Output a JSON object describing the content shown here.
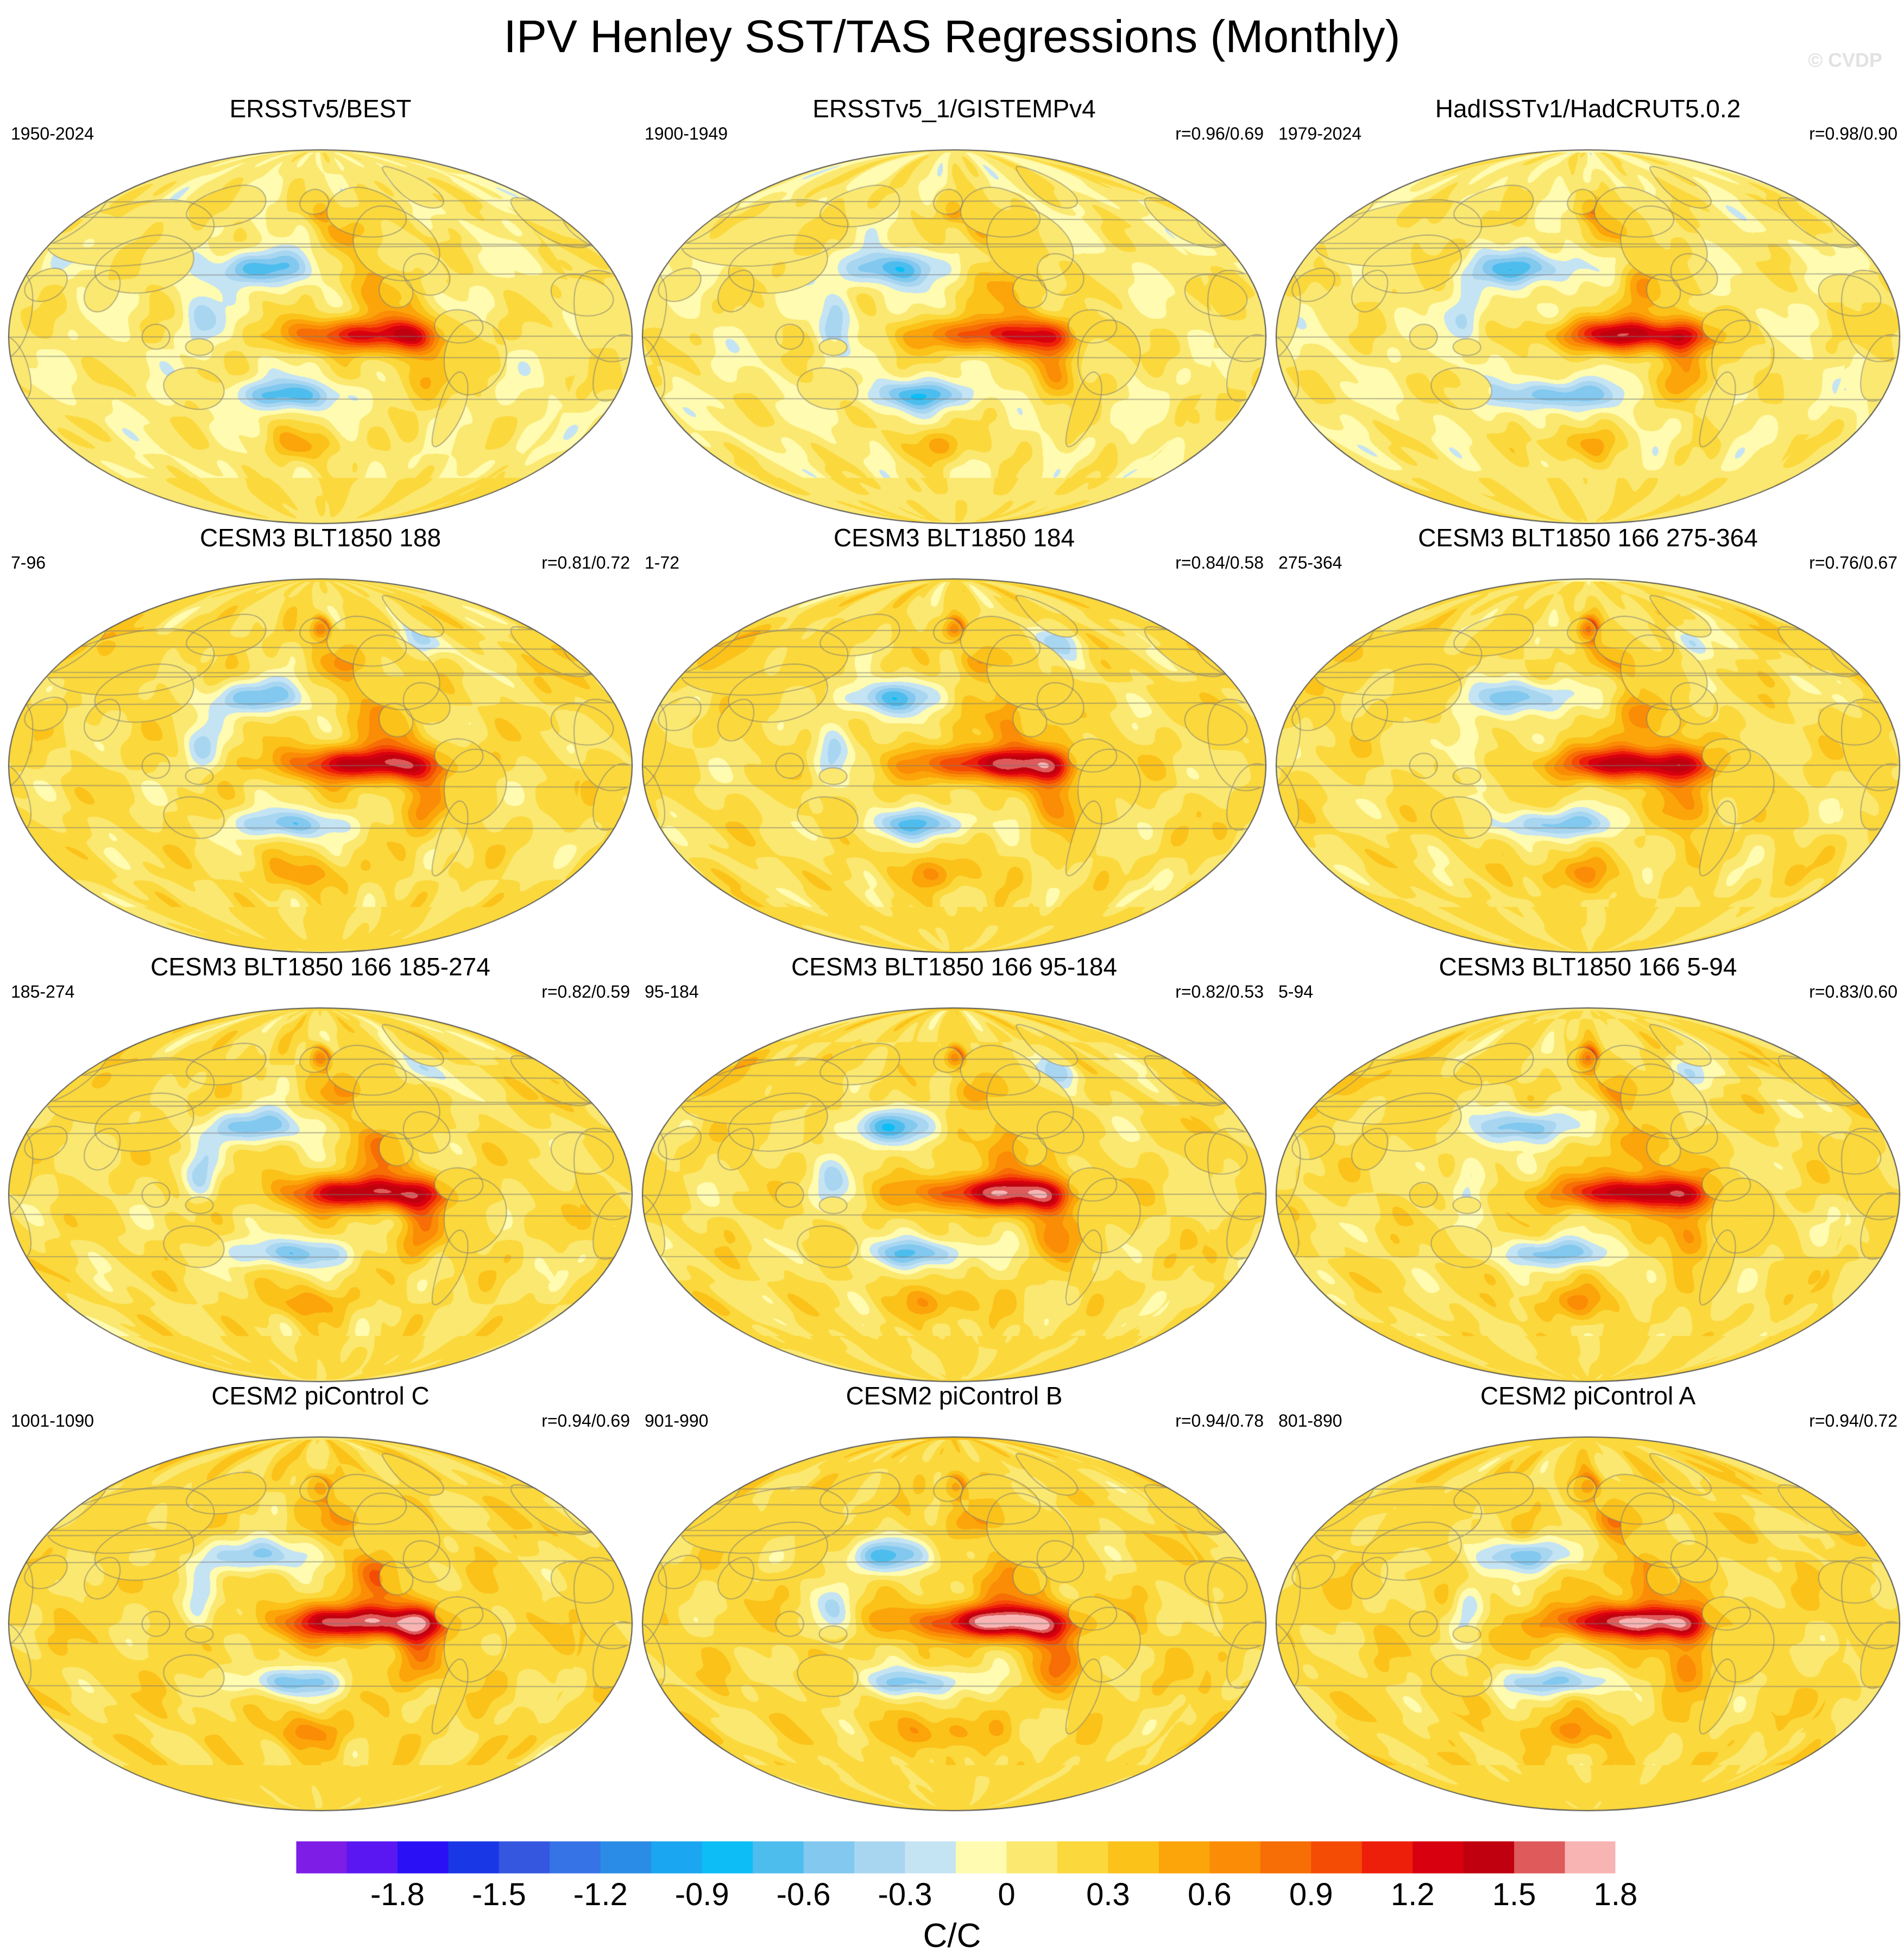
{
  "title": "IPV Henley SST/TAS Regressions (Monthly)",
  "copyright": "© CVDP",
  "panels": [
    {
      "name": "ERSSTv5/BEST",
      "period": "1950-2024",
      "corr": "",
      "pattern": "obs",
      "ocean_bias": 0.0,
      "amp": 1.2
    },
    {
      "name": "ERSSTv5_1/GISTEMPv4",
      "period": "1900-1949",
      "corr": "r=0.96/0.69",
      "pattern": "obs",
      "ocean_bias": 0.0,
      "amp": 1.1
    },
    {
      "name": "HadISSTv1/HadCRUT5.0.2",
      "period": "1979-2024",
      "corr": "r=0.98/0.90",
      "pattern": "obs",
      "ocean_bias": 0.0,
      "amp": 1.35
    },
    {
      "name": "CESM3 BLT1850 188",
      "period": "7-96",
      "corr": "r=0.81/0.72",
      "pattern": "model",
      "ocean_bias": 0.1,
      "amp": 1.3
    },
    {
      "name": "CESM3 BLT1850 184",
      "period": "1-72",
      "corr": "r=0.84/0.58",
      "pattern": "model",
      "ocean_bias": 0.1,
      "amp": 1.3
    },
    {
      "name": "CESM3 BLT1850 166 275-364",
      "period": "275-364",
      "corr": "r=0.76/0.67",
      "pattern": "model",
      "ocean_bias": 0.1,
      "amp": 1.3
    },
    {
      "name": "CESM3 BLT1850 166 185-274",
      "period": "185-274",
      "corr": "r=0.82/0.59",
      "pattern": "model",
      "ocean_bias": 0.1,
      "amp": 1.35
    },
    {
      "name": "CESM3 BLT1850 166 95-184",
      "period": "95-184",
      "corr": "r=0.82/0.53",
      "pattern": "model",
      "ocean_bias": 0.1,
      "amp": 1.35
    },
    {
      "name": "CESM3 BLT1850 166 5-94",
      "period": "5-94",
      "corr": "r=0.83/0.60",
      "pattern": "model",
      "ocean_bias": 0.1,
      "amp": 1.3
    },
    {
      "name": "CESM2 piControl C",
      "period": "1001-1090",
      "corr": "r=0.94/0.69",
      "pattern": "pi",
      "ocean_bias": 0.15,
      "amp": 1.5
    },
    {
      "name": "CESM2 piControl B",
      "period": "901-990",
      "corr": "r=0.94/0.78",
      "pattern": "pi",
      "ocean_bias": 0.15,
      "amp": 1.5
    },
    {
      "name": "CESM2 piControl A",
      "period": "801-890",
      "corr": "r=0.94/0.72",
      "pattern": "pi",
      "ocean_bias": 0.15,
      "amp": 1.45
    }
  ],
  "colorbar": {
    "unit_label": "C/C",
    "tick_labels": [
      "-1.8",
      "-1.5",
      "-1.2",
      "-0.9",
      "-0.6",
      "-0.3",
      "0",
      "0.3",
      "0.6",
      "0.9",
      "1.2",
      "1.5",
      "1.8"
    ],
    "level_min": -2.1,
    "level_step": 0.15,
    "colors": [
      "#7d1de6",
      "#5b17f2",
      "#2a10f5",
      "#1a37e6",
      "#3557e0",
      "#3573e6",
      "#2a8ce6",
      "#1aa6f0",
      "#0dbdf5",
      "#4dbdee",
      "#82c8ef",
      "#a8d6f1",
      "#c5e4f3",
      "#fffbb0",
      "#fbe870",
      "#fbd83c",
      "#fbc21a",
      "#fba50a",
      "#fb8c05",
      "#f66e05",
      "#f54c05",
      "#ee1f0a",
      "#d8000f",
      "#c0000e",
      "#df5a5a",
      "#f8b3b3"
    ]
  }
}
